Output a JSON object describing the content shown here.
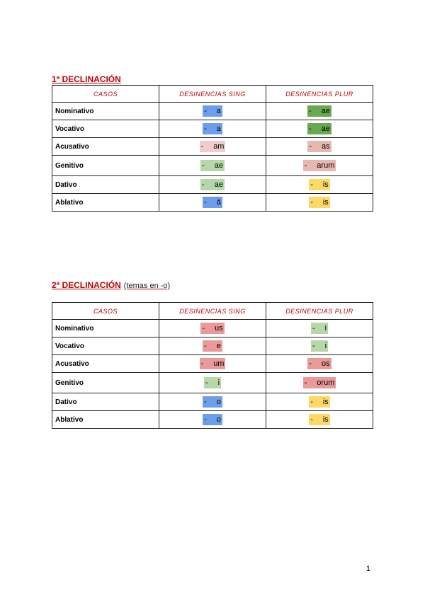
{
  "colors": {
    "blue": "#6d9eeb",
    "dark_green": "#6aa84f",
    "light_pink": "#f4cccc",
    "salmon": "#e6b8af",
    "light_green": "#b6d7a8",
    "yellow": "#ffd966",
    "red": "#ea9999"
  },
  "headers": {
    "casos": "CASOS",
    "sing": "DESINENCIAS SING",
    "plur": "DESINENCIAS PLUR"
  },
  "dash": "-",
  "decl1": {
    "title": "1ª DECLINACIÓN",
    "rows": [
      {
        "case": "Nominativo",
        "sing": "a",
        "sing_color": "blue",
        "plur": "ae",
        "plur_color": "dark_green"
      },
      {
        "case": "Vocativo",
        "sing": "a",
        "sing_color": "blue",
        "plur": "ae",
        "plur_color": "dark_green"
      },
      {
        "case": "Acusativo",
        "sing": "am",
        "sing_color": "light_pink",
        "plur": "as",
        "plur_color": "salmon"
      },
      {
        "case": "Genitivo",
        "sing": "ae",
        "sing_color": "light_green",
        "plur": "arum",
        "plur_color": "salmon"
      },
      {
        "case": "Dativo",
        "sing": "ae",
        "sing_color": "light_green",
        "plur": "is",
        "plur_color": "yellow"
      },
      {
        "case": "Ablativo",
        "sing": "ā",
        "sing_color": "blue",
        "plur": "is",
        "plur_color": "yellow"
      }
    ]
  },
  "decl2": {
    "title": "2ª DECLINACIÓN",
    "subtitle": "(temas en -o)",
    "rows": [
      {
        "case": "Nominativo",
        "sing": "us",
        "sing_color": "red",
        "plur": "i",
        "plur_color": "light_green"
      },
      {
        "case": "Vocativo",
        "sing": "e",
        "sing_color": "red",
        "plur": "i",
        "plur_color": "light_green"
      },
      {
        "case": "Acusativo",
        "sing": "um",
        "sing_color": "red",
        "plur": "os",
        "plur_color": "red"
      },
      {
        "case": "Genitivo",
        "sing": "i",
        "sing_color": "light_green",
        "plur": "orum",
        "plur_color": "red"
      },
      {
        "case": "Dativo",
        "sing": "o",
        "sing_color": "blue",
        "plur": "is",
        "plur_color": "yellow"
      },
      {
        "case": "Ablativo",
        "sing": "o",
        "sing_color": "blue",
        "plur": "is",
        "plur_color": "yellow"
      }
    ]
  },
  "page_number": "1"
}
